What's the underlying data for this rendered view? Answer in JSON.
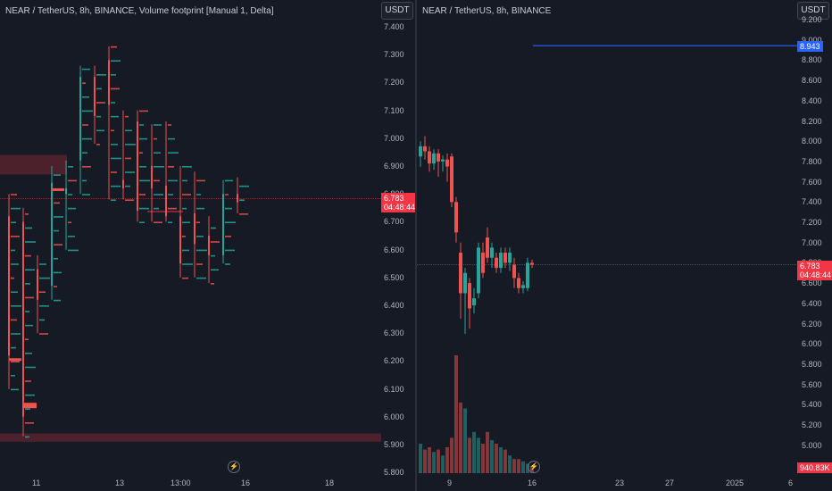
{
  "left_chart": {
    "title": "NEAR / TetherUS, 8h, BINANCE, Volume footprint [Manual 1, Delta]",
    "currency_button": "USDT",
    "price_ticks": [
      "7.400",
      "7.300",
      "7.200",
      "7.100",
      "7.000",
      "6.900",
      "6.800",
      "6.700",
      "6.600",
      "6.500",
      "6.400",
      "6.300",
      "6.200",
      "6.100",
      "6.000",
      "5.900",
      "5.800"
    ],
    "time_ticks": [
      "11",
      "13",
      "13:00",
      "16",
      "18"
    ],
    "last_price": "6.783",
    "countdown": "04:48:44",
    "bolt_icon": "lightning-icon"
  },
  "right_chart": {
    "title": "NEAR / TetherUS, 8h, BINANCE",
    "currency_button": "USDT",
    "price_ticks": [
      "9.200",
      "9.000",
      "8.800",
      "8.600",
      "8.400",
      "8.200",
      "8.000",
      "7.800",
      "7.600",
      "7.400",
      "7.200",
      "7.000",
      "6.800",
      "6.600",
      "6.400",
      "6.200",
      "6.000",
      "5.800",
      "5.600",
      "5.400",
      "5.200",
      "5.000"
    ],
    "time_ticks": [
      "9",
      "16",
      "23",
      "27",
      "2025",
      "6"
    ],
    "horizontal_line_price": "8.943",
    "last_price": "6.783",
    "countdown": "04:48:44",
    "volume_label": "940.83K",
    "bolt_icon": "lightning-icon"
  },
  "colors": {
    "up": "#26a69a",
    "down": "#ef5350",
    "blue_line": "#2962ff",
    "background": "#161a25"
  }
}
